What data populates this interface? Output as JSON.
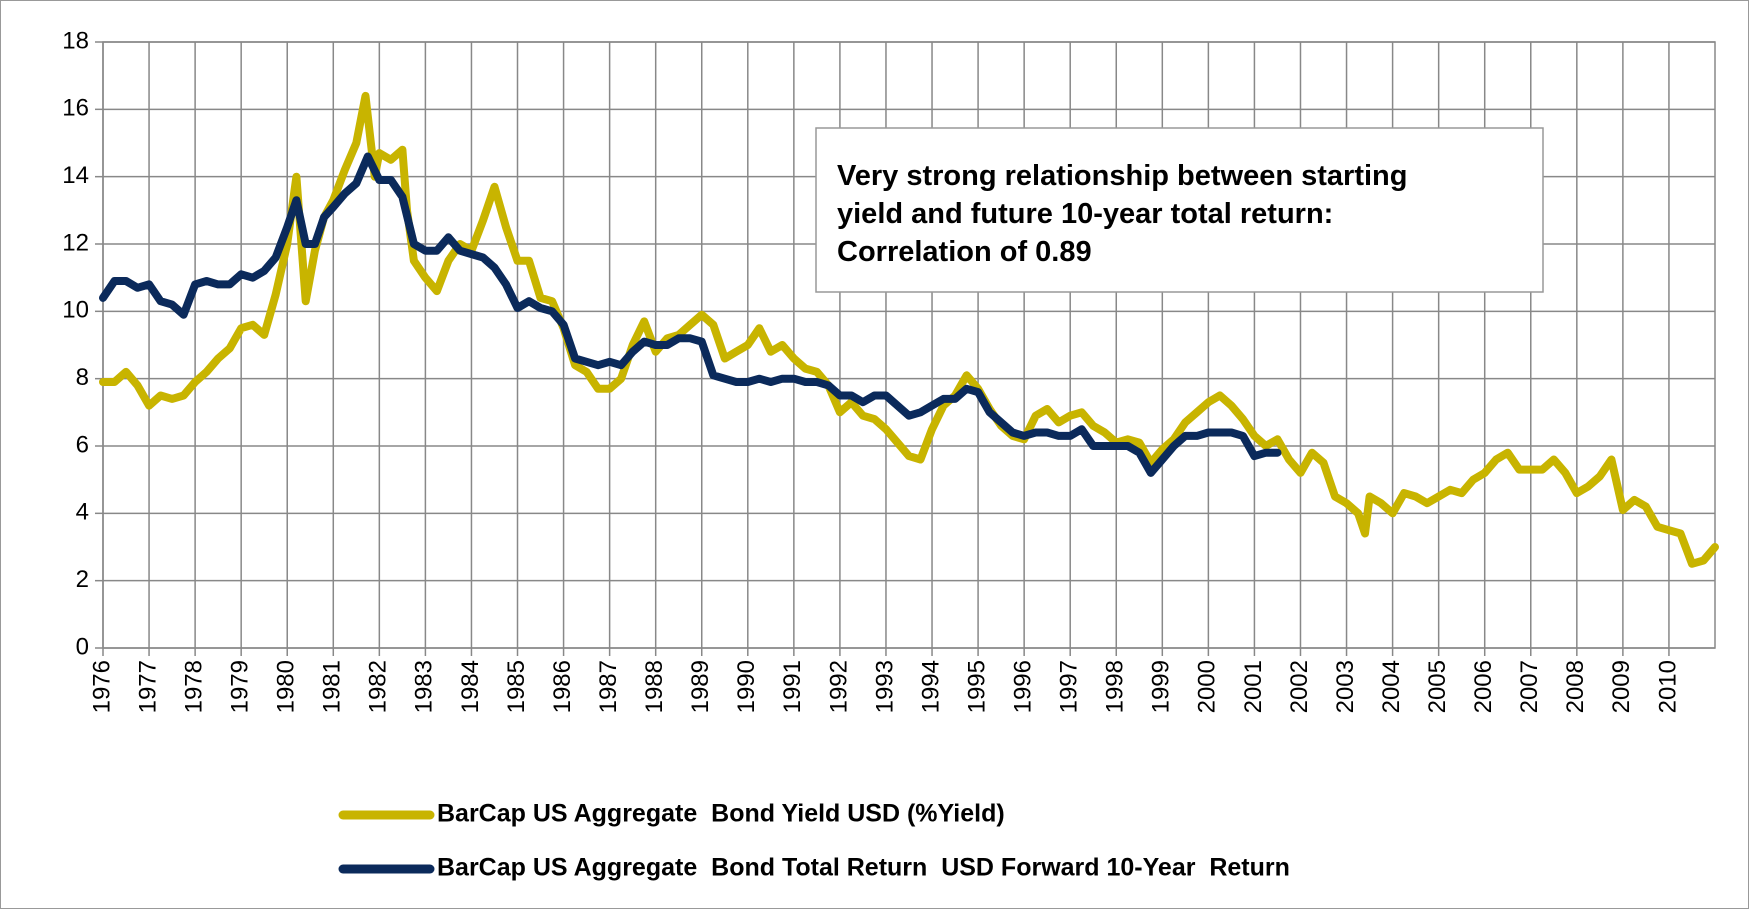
{
  "chart_data": {
    "type": "line",
    "annotation": [
      "Very strong relationship between starting",
      "yield and future 10-year total return:",
      "Correlation of 0.89"
    ],
    "xlim": [
      1976,
      2011
    ],
    "xticks": [
      1976,
      1977,
      1978,
      1979,
      1980,
      1981,
      1982,
      1983,
      1984,
      1985,
      1986,
      1987,
      1988,
      1989,
      1990,
      1991,
      1992,
      1993,
      1994,
      1995,
      1996,
      1997,
      1998,
      1999,
      2000,
      2001,
      2002,
      2003,
      2004,
      2005,
      2006,
      2007,
      2008,
      2009,
      2010
    ],
    "ylim": [
      0,
      18
    ],
    "yticks": [
      0,
      2,
      4,
      6,
      8,
      10,
      12,
      14,
      16,
      18
    ],
    "grid": true,
    "series": [
      {
        "name": "BarCap US Aggregate  Bond Yield USD (%Yield)",
        "color": "#c8b400",
        "x": [
          1976,
          1976.25,
          1976.5,
          1976.75,
          1977,
          1977.25,
          1977.5,
          1977.75,
          1978,
          1978.25,
          1978.5,
          1978.75,
          1979,
          1979.25,
          1979.5,
          1979.75,
          1980,
          1980.2,
          1980.4,
          1980.6,
          1980.8,
          1981,
          1981.25,
          1981.5,
          1981.7,
          1981.9,
          1982,
          1982.25,
          1982.5,
          1982.6,
          1982.75,
          1983,
          1983.25,
          1983.5,
          1983.75,
          1984,
          1984.25,
          1984.5,
          1984.75,
          1985,
          1985.25,
          1985.5,
          1985.75,
          1986,
          1986.25,
          1986.5,
          1986.75,
          1987,
          1987.25,
          1987.5,
          1987.75,
          1988,
          1988.25,
          1988.5,
          1988.75,
          1989,
          1989.25,
          1989.5,
          1989.75,
          1990,
          1990.25,
          1990.5,
          1990.75,
          1991,
          1991.25,
          1991.5,
          1991.75,
          1992,
          1992.25,
          1992.5,
          1992.75,
          1993,
          1993.25,
          1993.5,
          1993.75,
          1994,
          1994.25,
          1994.5,
          1994.75,
          1995,
          1995.25,
          1995.5,
          1995.75,
          1996,
          1996.25,
          1996.5,
          1996.75,
          1997,
          1997.25,
          1997.5,
          1997.75,
          1998,
          1998.25,
          1998.5,
          1998.75,
          1999,
          1999.25,
          1999.5,
          1999.75,
          2000,
          2000.25,
          2000.5,
          2000.75,
          2001,
          2001.25,
          2001.5,
          2001.75,
          2002,
          2002.25,
          2002.5,
          2002.75,
          2003,
          2003.25,
          2003.4,
          2003.5,
          2003.75,
          2004,
          2004.25,
          2004.5,
          2004.75,
          2005,
          2005.25,
          2005.5,
          2005.75,
          2006,
          2006.25,
          2006.5,
          2006.75,
          2007,
          2007.25,
          2007.5,
          2007.75,
          2008,
          2008.25,
          2008.5,
          2008.75,
          2009,
          2009.25,
          2009.5,
          2009.75,
          2010,
          2010.25,
          2010.5,
          2010.75,
          2011
        ],
        "values": [
          7.9,
          7.9,
          8.2,
          7.8,
          7.2,
          7.5,
          7.4,
          7.5,
          7.9,
          8.2,
          8.6,
          8.9,
          9.5,
          9.6,
          9.3,
          10.5,
          12.0,
          14.0,
          10.3,
          11.8,
          12.8,
          13.3,
          14.2,
          15.0,
          16.4,
          14.0,
          14.7,
          14.5,
          14.8,
          13.0,
          11.5,
          11.0,
          10.6,
          11.5,
          12.0,
          11.8,
          12.7,
          13.7,
          12.5,
          11.5,
          11.5,
          10.4,
          10.3,
          9.5,
          8.4,
          8.2,
          7.7,
          7.7,
          8.0,
          9.0,
          9.7,
          8.8,
          9.2,
          9.3,
          9.6,
          9.9,
          9.6,
          8.6,
          8.8,
          9.0,
          9.5,
          8.8,
          9.0,
          8.6,
          8.3,
          8.2,
          7.8,
          7.0,
          7.3,
          6.9,
          6.8,
          6.5,
          6.1,
          5.7,
          5.6,
          6.5,
          7.2,
          7.5,
          8.1,
          7.7,
          7.1,
          6.6,
          6.3,
          6.2,
          6.9,
          7.1,
          6.7,
          6.9,
          7.0,
          6.6,
          6.4,
          6.1,
          6.2,
          6.1,
          5.5,
          5.9,
          6.2,
          6.7,
          7.0,
          7.3,
          7.5,
          7.2,
          6.8,
          6.3,
          6.0,
          6.2,
          5.6,
          5.2,
          5.8,
          5.5,
          4.5,
          4.3,
          4.0,
          3.4,
          4.5,
          4.3,
          4.0,
          4.6,
          4.5,
          4.3,
          4.5,
          4.7,
          4.6,
          5.0,
          5.2,
          5.6,
          5.8,
          5.3,
          5.3,
          5.3,
          5.6,
          5.2,
          4.6,
          4.8,
          5.1,
          5.6,
          4.1,
          4.4,
          4.2,
          3.6,
          3.5,
          3.4,
          2.5,
          2.6,
          3.0
        ]
      },
      {
        "name": "BarCap US Aggregate  Bond Total Return  USD Forward 10-Year  Return",
        "color": "#0b2a5b",
        "x": [
          1976,
          1976.25,
          1976.5,
          1976.75,
          1977,
          1977.25,
          1977.5,
          1977.75,
          1978,
          1978.25,
          1978.5,
          1978.75,
          1979,
          1979.25,
          1979.5,
          1979.75,
          1980,
          1980.2,
          1980.4,
          1980.6,
          1980.8,
          1981,
          1981.25,
          1981.5,
          1981.75,
          1982,
          1982.25,
          1982.5,
          1982.75,
          1983,
          1983.25,
          1983.5,
          1983.75,
          1984,
          1984.25,
          1984.5,
          1984.75,
          1985,
          1985.25,
          1985.5,
          1985.75,
          1986,
          1986.25,
          1986.5,
          1986.75,
          1987,
          1987.25,
          1987.5,
          1987.75,
          1988,
          1988.25,
          1988.5,
          1988.75,
          1989,
          1989.25,
          1989.5,
          1989.75,
          1990,
          1990.25,
          1990.5,
          1990.75,
          1991,
          1991.25,
          1991.5,
          1991.75,
          1992,
          1992.25,
          1992.5,
          1992.75,
          1993,
          1993.25,
          1993.5,
          1993.75,
          1994,
          1994.25,
          1994.5,
          1994.75,
          1995,
          1995.25,
          1995.5,
          1995.75,
          1996,
          1996.25,
          1996.5,
          1996.75,
          1997,
          1997.25,
          1997.5,
          1997.75,
          1998,
          1998.25,
          1998.5,
          1998.75,
          1999,
          1999.25,
          1999.5,
          1999.75,
          2000,
          2000.25,
          2000.5,
          2000.75,
          2001,
          2001.25,
          2001.5
        ],
        "values": [
          10.4,
          10.9,
          10.9,
          10.7,
          10.8,
          10.3,
          10.2,
          9.9,
          10.8,
          10.9,
          10.8,
          10.8,
          11.1,
          11.0,
          11.2,
          11.6,
          12.5,
          13.3,
          12.0,
          12.0,
          12.8,
          13.1,
          13.5,
          13.8,
          14.6,
          13.9,
          13.9,
          13.4,
          12.0,
          11.8,
          11.8,
          12.2,
          11.8,
          11.7,
          11.6,
          11.3,
          10.8,
          10.1,
          10.3,
          10.1,
          10.0,
          9.6,
          8.6,
          8.5,
          8.4,
          8.5,
          8.4,
          8.8,
          9.1,
          9.0,
          9.0,
          9.2,
          9.2,
          9.1,
          8.1,
          8.0,
          7.9,
          7.9,
          8.0,
          7.9,
          8.0,
          8.0,
          7.9,
          7.9,
          7.8,
          7.5,
          7.5,
          7.3,
          7.5,
          7.5,
          7.2,
          6.9,
          7.0,
          7.2,
          7.4,
          7.4,
          7.7,
          7.6,
          7.0,
          6.7,
          6.4,
          6.3,
          6.4,
          6.4,
          6.3,
          6.3,
          6.5,
          6.0,
          6.0,
          6.0,
          6.0,
          5.8,
          5.2,
          5.6,
          6.0,
          6.3,
          6.3,
          6.4,
          6.4,
          6.4,
          6.3,
          5.7,
          5.8,
          5.8
        ]
      }
    ]
  }
}
